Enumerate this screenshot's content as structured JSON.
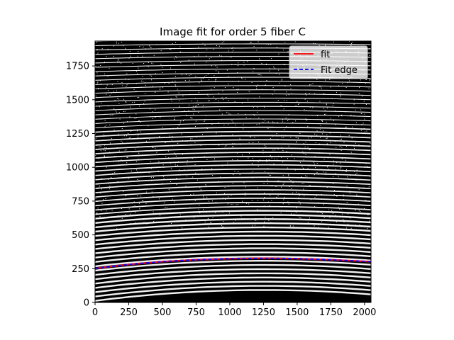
{
  "chart_data": {
    "type": "line",
    "title": "Image fit for order 5 fiber C",
    "xlabel": "",
    "ylabel": "",
    "xlim": [
      0,
      2048
    ],
    "ylim": [
      0,
      1934
    ],
    "x_ticks": [
      0,
      250,
      500,
      750,
      1000,
      1250,
      1500,
      1750,
      2000
    ],
    "y_ticks": [
      0,
      250,
      500,
      750,
      1000,
      1250,
      1500,
      1750
    ],
    "x_tick_labels": [
      "0",
      "250",
      "500",
      "750",
      "1000",
      "1250",
      "1500",
      "1750",
      "2000"
    ],
    "y_tick_labels": [
      "0",
      "250",
      "500",
      "750",
      "1000",
      "1250",
      "1500",
      "1750"
    ],
    "legend_position": "top-right",
    "background": "binary image of echelle spectral orders (white traces on black)",
    "series": [
      {
        "name": "fit",
        "color": "#ff0000",
        "style": "solid",
        "x": [
          0,
          250,
          500,
          750,
          1000,
          1250,
          1500,
          1750,
          2048
        ],
        "y": [
          252,
          281,
          302,
          316,
          324,
          327,
          324,
          316,
          302
        ]
      },
      {
        "name": "Fit edge",
        "color": "#0000ff",
        "style": "dashed",
        "x": [
          0,
          250,
          500,
          750,
          1000,
          1250,
          1500,
          1750,
          2048
        ],
        "y": [
          252,
          281,
          302,
          316,
          324,
          327,
          324,
          316,
          302
        ]
      }
    ]
  }
}
